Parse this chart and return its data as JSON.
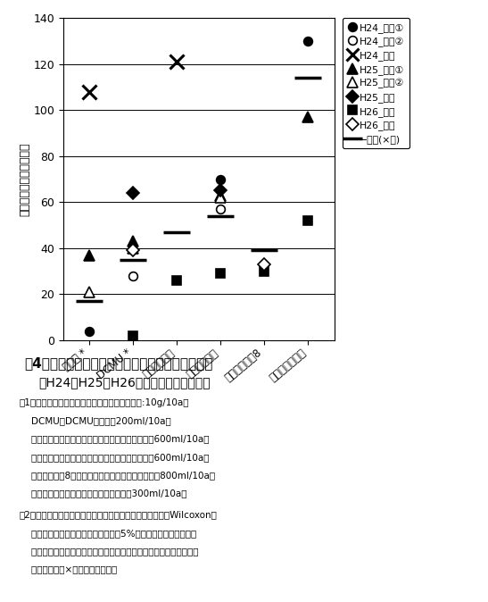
{
  "x_labels": [
    "フルオ *",
    "DCMU *",
    "ジメ・リニュ",
    "アラ・リニュ",
    "アラ・リニュ8",
    "トリフルラリン"
  ],
  "x_positions": [
    0,
    1,
    2,
    3,
    4,
    5
  ],
  "series_order": [
    "H24_場内①",
    "H24_場内②",
    "H24_現地",
    "H25_場内①",
    "H25_場内②",
    "H25_現地",
    "H26_場内",
    "H26_現地",
    "平均(×除)"
  ],
  "series": {
    "H24_場内①": {
      "marker": "o",
      "filled": true,
      "ms": 7,
      "mew": 1.2,
      "values": [
        4,
        null,
        null,
        70,
        null,
        130
      ]
    },
    "H24_場内②": {
      "marker": "o",
      "filled": false,
      "ms": 7,
      "mew": 1.2,
      "values": [
        null,
        28,
        null,
        57,
        null,
        null
      ]
    },
    "H24_現地": {
      "marker": "x",
      "filled": true,
      "ms": 11,
      "mew": 2.2,
      "values": [
        108,
        null,
        121,
        null,
        null,
        null
      ]
    },
    "H25_場内①": {
      "marker": "^",
      "filled": true,
      "ms": 8,
      "mew": 1.2,
      "values": [
        37,
        43,
        null,
        63,
        null,
        97
      ]
    },
    "H25_場内②": {
      "marker": "^",
      "filled": false,
      "ms": 8,
      "mew": 1.2,
      "values": [
        21,
        40,
        null,
        62,
        null,
        null
      ]
    },
    "H25_現地": {
      "marker": "D",
      "filled": true,
      "ms": 7,
      "mew": 1.2,
      "values": [
        null,
        64,
        null,
        65,
        null,
        null
      ]
    },
    "H26_場内": {
      "marker": "s",
      "filled": true,
      "ms": 7,
      "mew": 1.2,
      "values": [
        null,
        2,
        26,
        29,
        30,
        52
      ]
    },
    "H26_現地": {
      "marker": "D",
      "filled": false,
      "ms": 7,
      "mew": 1.2,
      "values": [
        null,
        39,
        null,
        null,
        33,
        null
      ]
    },
    "平均(×除)": {
      "marker": "_",
      "filled": true,
      "ms": 22,
      "mew": 2.5,
      "values": [
        17,
        35,
        47,
        54,
        39,
        114
      ]
    }
  },
  "ylabel": "残草量無処理区比（％）",
  "ylim": [
    0,
    140
  ],
  "yticks": [
    0,
    20,
    40,
    60,
    80,
    100,
    120,
    140
  ],
  "title_text": "図4　アレチウリに対する土壌処理型除草剤の効果",
  "subtitle_text": "（H24，H25，H26年，古試場内，現地）",
  "note1_line0": "注1）フルミオ：フルミオキサジン水和剤（薬量:10g/10a）",
  "note1_lines": [
    "    DCMU：DCMU水和剤（200ml/10a）",
    "    ジメ・リニュ：ジメテナミド・リニュロン乳剤（600ml/10a）",
    "    アラ・リニュ：アラクロール・リニュロン乳剤（600ml/10a）",
    "    アラ・リニュ8：アラクロール・リニュロン乳剤（800ml/10a）",
    "    トリフルラリン：トリフルラリン乳剤（300ml/10a）"
  ],
  "note2_lines": [
    "注2）剤名に付した＊は，残草量データを用いた対応のあるWilcoxonの",
    "    符号付順位検定で無処理区との間に5%水準で有意差があること",
    "    を示す。（処理時に土壌表面の砂土率が低く，過乾燥状態であった",
    "    事例（図中の×）を除いて検定）"
  ],
  "legend_labels": [
    "H24_場内①",
    "H24_場内②",
    "H24_現地",
    "H25_場内①",
    "H25_場内②",
    "H25_現地",
    "H26_場内",
    "H26_現地",
    "−平均(×除)"
  ]
}
